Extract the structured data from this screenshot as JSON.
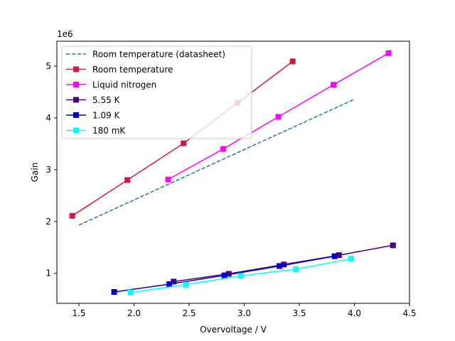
{
  "chart_data": {
    "type": "line",
    "title": "",
    "xlabel": "Overvoltage / V",
    "ylabel": "Gain",
    "y_multiplier_label": "1e6",
    "xlim": [
      1.3,
      4.5
    ],
    "ylim": [
      0.42,
      5.48
    ],
    "x_ticks": [
      1.5,
      2.0,
      2.5,
      3.0,
      3.5,
      4.0,
      4.5
    ],
    "x_tick_labels": [
      "1.5",
      "2.0",
      "2.5",
      "3.0",
      "3.5",
      "4.0",
      "4.5"
    ],
    "y_ticks": [
      1,
      2,
      3,
      4,
      5
    ],
    "y_tick_labels": [
      "1",
      "2",
      "3",
      "4",
      "5"
    ],
    "grid": false,
    "legend_position": "top-left",
    "series": [
      {
        "name": "Room temperature (datasheet)",
        "color": "#1f77b4",
        "style": "dashed",
        "marker": "none",
        "x": [
          1.5,
          4.0
        ],
        "y": [
          1.93,
          4.36
        ]
      },
      {
        "name": "Room temperature",
        "color": "#dc143c",
        "style": "solid",
        "marker": "square",
        "x": [
          1.44,
          1.94,
          2.45,
          2.94,
          3.44
        ],
        "y": [
          2.11,
          2.8,
          3.51,
          4.29,
          5.09
        ]
      },
      {
        "name": "Liquid nitrogen",
        "color": "#ff00ff",
        "style": "solid",
        "marker": "square",
        "x": [
          2.31,
          2.81,
          3.31,
          3.81,
          4.31
        ],
        "y": [
          2.81,
          3.4,
          4.02,
          4.64,
          5.25
        ]
      },
      {
        "name": "5.55 K",
        "color": "#4b0082",
        "style": "solid",
        "marker": "square",
        "x": [
          2.36,
          2.86,
          3.36,
          3.86,
          4.35
        ],
        "y": [
          0.84,
          0.99,
          1.17,
          1.35,
          1.54
        ]
      },
      {
        "name": "1.09 K",
        "color": "#0000cd",
        "style": "solid",
        "marker": "square",
        "x": [
          1.82,
          2.32,
          2.82,
          3.32,
          3.82
        ],
        "y": [
          0.64,
          0.79,
          0.96,
          1.14,
          1.33
        ]
      },
      {
        "name": "180 mK",
        "color": "#00ffff",
        "style": "solid",
        "marker": "square",
        "x": [
          1.97,
          2.47,
          2.97,
          3.47,
          3.97
        ],
        "y": [
          0.63,
          0.78,
          0.95,
          1.08,
          1.28
        ]
      }
    ]
  }
}
